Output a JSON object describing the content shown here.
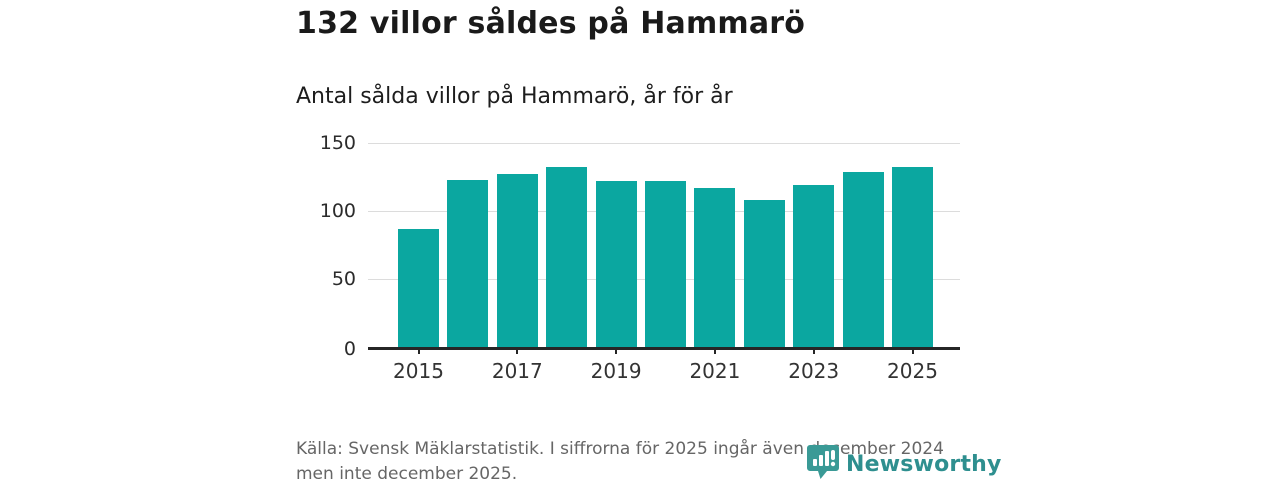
{
  "header": {
    "title": "132 villor såldes på Hammarö",
    "subtitle": "Antal sålda villor på Hammarö, år för år"
  },
  "chart_data": {
    "type": "bar",
    "categories": [
      2015,
      2016,
      2017,
      2018,
      2019,
      2020,
      2021,
      2022,
      2023,
      2024,
      2025
    ],
    "values": [
      87,
      123,
      127,
      132,
      122,
      122,
      117,
      108,
      119,
      129,
      132
    ],
    "title": "Antal sålda villor på Hammarö, år för år",
    "xlabel": "",
    "ylabel": "",
    "ylim": [
      0,
      150
    ],
    "yticks": [
      0,
      50,
      100,
      150
    ],
    "xticks": [
      2015,
      2017,
      2019,
      2021,
      2023,
      2025
    ],
    "bar_color": "#0ba7a0",
    "grid": true,
    "legend_position": "none"
  },
  "footer": {
    "lines": [
      "Källa: Svensk Mäklarstatistik. I siffrorna för 2025 ingår även december 2024",
      "men inte december 2025."
    ]
  },
  "logo": {
    "text": "Newsworthy",
    "color": "#2e8f8f",
    "icon": "newsworthy-badge-chart-icon"
  }
}
